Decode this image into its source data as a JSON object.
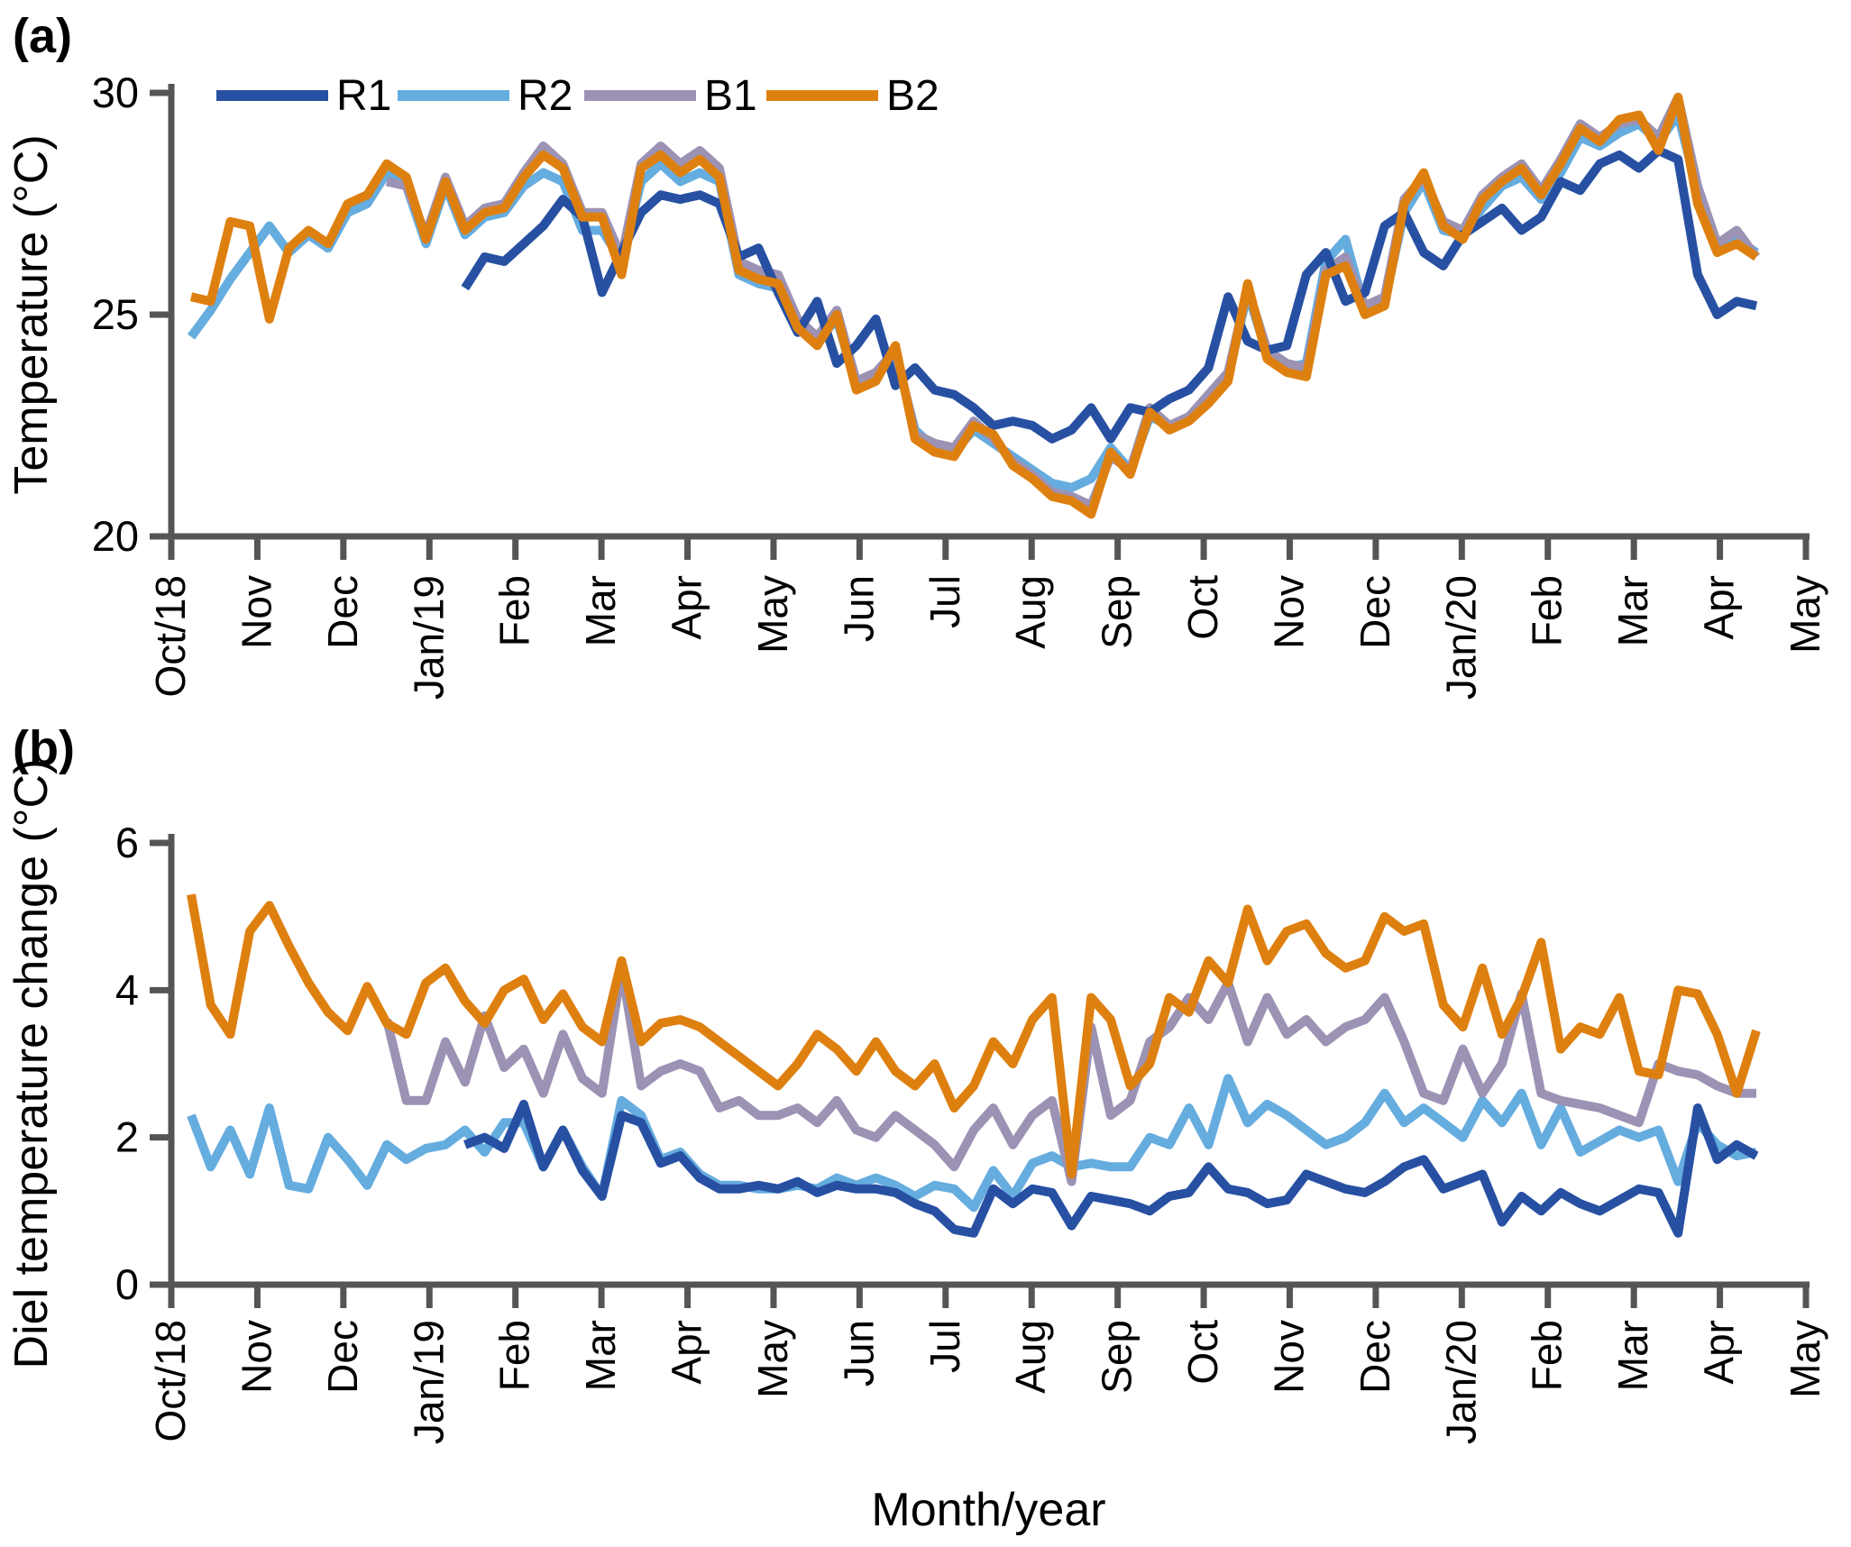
{
  "figure": {
    "panel_a_label": "(a)",
    "panel_b_label": "(b)",
    "x_axis_title": "Month/year",
    "axis_color": "#555555",
    "background": "#ffffff",
    "legend": [
      {
        "id": "R1",
        "label": "R1",
        "color": "#2750A2"
      },
      {
        "id": "R2",
        "label": "R2",
        "color": "#65ACDF"
      },
      {
        "id": "B1",
        "label": "B1",
        "color": "#9C92B4"
      },
      {
        "id": "B2",
        "label": "B2",
        "color": "#DE8010"
      }
    ]
  },
  "chart_data": [
    {
      "type": "line",
      "panel": "a",
      "ylabel": "Temperature (°C)",
      "ylim": [
        20,
        30
      ],
      "yticks": [
        20,
        25,
        30
      ],
      "x_unit": "week",
      "x_tick_labels": [
        "Oct/18",
        "Nov",
        "Dec",
        "Jan/19",
        "Feb",
        "Mar",
        "Apr",
        "May",
        "Jun",
        "Jul",
        "Aug",
        "Sep",
        "Oct",
        "Nov",
        "Dec",
        "Jan/20",
        "Feb",
        "Mar",
        "Apr",
        "May"
      ],
      "legend_position": "top",
      "grid": false,
      "series": [
        {
          "name": "R2",
          "color": "#65ACDF",
          "values": [
            24.5,
            25.1,
            25.8,
            26.4,
            27.0,
            26.4,
            26.8,
            26.5,
            27.3,
            27.5,
            28.2,
            27.9,
            26.6,
            27.9,
            26.8,
            27.2,
            27.3,
            27.9,
            28.2,
            28.0,
            26.9,
            26.9,
            26.2,
            28.0,
            28.4,
            28.0,
            28.2,
            28.0,
            25.9,
            25.7,
            25.6,
            24.8,
            24.4,
            24.9,
            23.4,
            23.6,
            24.1,
            22.4,
            22.0,
            21.9,
            22.4,
            22.1,
            21.8,
            21.5,
            21.2,
            21.1,
            21.3,
            22.0,
            21.5,
            22.7,
            22.5,
            22.7,
            23.1,
            23.6,
            25.5,
            24.1,
            23.8,
            23.9,
            26.2,
            26.7,
            25.1,
            25.3,
            27.3,
            28.0,
            26.9,
            26.8,
            27.4,
            27.9,
            28.1,
            27.6,
            28.2,
            29.0,
            28.8,
            29.1,
            29.3,
            28.9,
            29.5,
            27.8,
            26.5,
            26.7,
            26.4
          ]
        },
        {
          "name": "B1",
          "color": "#9C92B4",
          "values": [
            null,
            null,
            null,
            null,
            null,
            null,
            null,
            null,
            null,
            null,
            28.0,
            27.9,
            26.8,
            28.1,
            27.0,
            27.4,
            27.5,
            28.2,
            28.8,
            28.4,
            27.3,
            27.3,
            26.3,
            28.4,
            28.8,
            28.4,
            28.7,
            28.3,
            26.2,
            26.0,
            25.9,
            24.9,
            24.5,
            25.1,
            23.5,
            23.7,
            24.2,
            22.3,
            22.1,
            22.0,
            22.6,
            22.2,
            21.7,
            21.4,
            21.0,
            20.9,
            20.7,
            21.8,
            21.5,
            22.9,
            22.5,
            22.7,
            23.2,
            23.7,
            25.6,
            24.2,
            23.9,
            23.8,
            26.0,
            26.3,
            25.2,
            25.4,
            27.6,
            28.1,
            27.1,
            26.9,
            27.7,
            28.1,
            28.4,
            27.8,
            28.5,
            29.3,
            29.0,
            29.3,
            29.4,
            29.0,
            29.9,
            27.9,
            26.6,
            26.9,
            26.3
          ]
        },
        {
          "name": "R1",
          "color": "#2750A2",
          "values": [
            null,
            null,
            null,
            null,
            null,
            null,
            null,
            null,
            null,
            null,
            null,
            null,
            null,
            null,
            25.6,
            26.3,
            26.2,
            26.6,
            27.0,
            27.6,
            27.2,
            25.5,
            26.4,
            27.3,
            27.7,
            27.6,
            27.7,
            27.5,
            26.3,
            26.5,
            25.5,
            24.6,
            25.3,
            23.9,
            24.3,
            24.9,
            23.4,
            23.8,
            23.3,
            23.2,
            22.9,
            22.5,
            22.6,
            22.5,
            22.2,
            22.4,
            22.9,
            22.2,
            22.9,
            22.8,
            23.1,
            23.3,
            23.8,
            25.4,
            24.4,
            24.2,
            24.3,
            25.9,
            26.4,
            25.3,
            25.5,
            27.0,
            27.3,
            26.4,
            26.1,
            26.8,
            27.1,
            27.4,
            26.9,
            27.2,
            28.0,
            27.8,
            28.4,
            28.6,
            28.3,
            28.7,
            28.5,
            25.9,
            25.0,
            25.3,
            25.2
          ]
        },
        {
          "name": "B2",
          "color": "#DE8010",
          "values": [
            25.4,
            25.3,
            27.1,
            27.0,
            24.9,
            26.5,
            26.9,
            26.6,
            27.5,
            27.7,
            28.4,
            28.1,
            26.7,
            28.0,
            26.9,
            27.3,
            27.4,
            28.1,
            28.6,
            28.3,
            27.2,
            27.2,
            25.9,
            28.3,
            28.6,
            28.2,
            28.5,
            28.1,
            26.0,
            25.8,
            25.7,
            24.7,
            24.3,
            25.0,
            23.3,
            23.5,
            24.3,
            22.2,
            21.9,
            21.8,
            22.5,
            22.3,
            21.6,
            21.3,
            20.9,
            20.8,
            20.5,
            21.9,
            21.4,
            22.8,
            22.4,
            22.6,
            23.0,
            23.5,
            25.7,
            24.0,
            23.7,
            23.6,
            25.9,
            26.1,
            25.0,
            25.2,
            27.5,
            28.2,
            27.0,
            26.7,
            27.6,
            28.0,
            28.3,
            27.7,
            28.4,
            29.2,
            28.9,
            29.4,
            29.5,
            28.7,
            29.9,
            27.5,
            26.4,
            26.6,
            26.3
          ]
        }
      ]
    },
    {
      "type": "line",
      "panel": "b",
      "ylabel": "Diel temperature change (°C)",
      "ylim": [
        0,
        6
      ],
      "yticks": [
        0,
        2,
        4,
        6
      ],
      "x_unit": "week",
      "x_tick_labels": [
        "Oct/18",
        "Nov",
        "Dec",
        "Jan/19",
        "Feb",
        "Mar",
        "Apr",
        "May",
        "Jun",
        "Jul",
        "Aug",
        "Sep",
        "Oct",
        "Nov",
        "Dec",
        "Jan/20",
        "Feb",
        "Mar",
        "Apr",
        "May"
      ],
      "legend_position": "none",
      "grid": false,
      "series": [
        {
          "name": "R2",
          "color": "#65ACDF",
          "values": [
            2.3,
            1.6,
            2.1,
            1.5,
            2.4,
            1.35,
            1.3,
            2.0,
            1.7,
            1.35,
            1.9,
            1.7,
            1.85,
            1.9,
            2.1,
            1.8,
            2.2,
            2.2,
            1.6,
            2.1,
            1.6,
            1.2,
            2.5,
            2.3,
            1.7,
            1.8,
            1.5,
            1.35,
            1.35,
            1.3,
            1.3,
            1.35,
            1.3,
            1.45,
            1.35,
            1.45,
            1.35,
            1.2,
            1.35,
            1.3,
            1.05,
            1.55,
            1.2,
            1.65,
            1.75,
            1.6,
            1.65,
            1.6,
            1.6,
            2.0,
            1.9,
            2.4,
            1.9,
            2.8,
            2.2,
            2.45,
            2.3,
            2.1,
            1.9,
            2.0,
            2.2,
            2.6,
            2.2,
            2.4,
            2.2,
            2.0,
            2.5,
            2.2,
            2.6,
            1.9,
            2.4,
            1.8,
            1.95,
            2.1,
            2.0,
            2.1,
            1.4,
            2.2,
            1.9,
            1.75,
            1.8
          ]
        },
        {
          "name": "B1",
          "color": "#9C92B4",
          "values": [
            null,
            null,
            null,
            null,
            null,
            null,
            null,
            null,
            null,
            null,
            3.6,
            2.5,
            2.5,
            3.3,
            2.75,
            3.65,
            2.95,
            3.2,
            2.6,
            3.4,
            2.8,
            2.6,
            4.3,
            2.7,
            2.9,
            3.0,
            2.9,
            2.4,
            2.5,
            2.3,
            2.3,
            2.4,
            2.2,
            2.5,
            2.1,
            2.0,
            2.3,
            2.1,
            1.9,
            1.6,
            2.1,
            2.4,
            1.9,
            2.3,
            2.5,
            1.4,
            3.5,
            2.3,
            2.5,
            3.3,
            3.5,
            3.9,
            3.6,
            4.1,
            3.3,
            3.9,
            3.4,
            3.6,
            3.3,
            3.5,
            3.6,
            3.9,
            3.3,
            2.6,
            2.5,
            3.2,
            2.6,
            3.0,
            3.95,
            2.6,
            2.5,
            2.45,
            2.4,
            2.3,
            2.2,
            3.0,
            2.9,
            2.85,
            2.7,
            2.6,
            2.6
          ]
        },
        {
          "name": "R1",
          "color": "#2750A2",
          "values": [
            null,
            null,
            null,
            null,
            null,
            null,
            null,
            null,
            null,
            null,
            null,
            null,
            null,
            null,
            1.9,
            2.0,
            1.85,
            2.45,
            1.6,
            2.1,
            1.55,
            1.2,
            2.3,
            2.2,
            1.65,
            1.75,
            1.45,
            1.3,
            1.3,
            1.35,
            1.3,
            1.4,
            1.25,
            1.35,
            1.3,
            1.3,
            1.25,
            1.1,
            1.0,
            0.75,
            0.7,
            1.3,
            1.1,
            1.3,
            1.25,
            0.8,
            1.2,
            1.15,
            1.1,
            1.0,
            1.2,
            1.25,
            1.6,
            1.3,
            1.25,
            1.1,
            1.15,
            1.5,
            1.4,
            1.3,
            1.25,
            1.4,
            1.6,
            1.7,
            1.3,
            1.4,
            1.5,
            0.85,
            1.2,
            1.0,
            1.25,
            1.1,
            1.0,
            1.15,
            1.3,
            1.25,
            0.7,
            2.4,
            1.7,
            1.9,
            1.75
          ]
        },
        {
          "name": "B2",
          "color": "#DE8010",
          "values": [
            5.3,
            3.8,
            3.4,
            4.8,
            5.15,
            4.6,
            4.1,
            3.7,
            3.45,
            4.05,
            3.55,
            3.4,
            4.1,
            4.3,
            3.85,
            3.55,
            4.0,
            4.15,
            3.6,
            3.95,
            3.5,
            3.3,
            4.4,
            3.3,
            3.55,
            3.6,
            3.5,
            3.3,
            3.1,
            2.9,
            2.7,
            3.0,
            3.4,
            3.2,
            2.9,
            3.3,
            2.9,
            2.7,
            3.0,
            2.4,
            2.7,
            3.3,
            3.0,
            3.6,
            3.9,
            1.5,
            3.9,
            3.6,
            2.7,
            3.0,
            3.9,
            3.7,
            4.4,
            4.1,
            5.1,
            4.4,
            4.8,
            4.9,
            4.5,
            4.3,
            4.4,
            5.0,
            4.8,
            4.9,
            3.8,
            3.5,
            4.3,
            3.4,
            3.9,
            4.65,
            3.2,
            3.5,
            3.4,
            3.9,
            2.9,
            2.85,
            4.0,
            3.95,
            3.4,
            2.6,
            3.45
          ]
        }
      ]
    }
  ]
}
